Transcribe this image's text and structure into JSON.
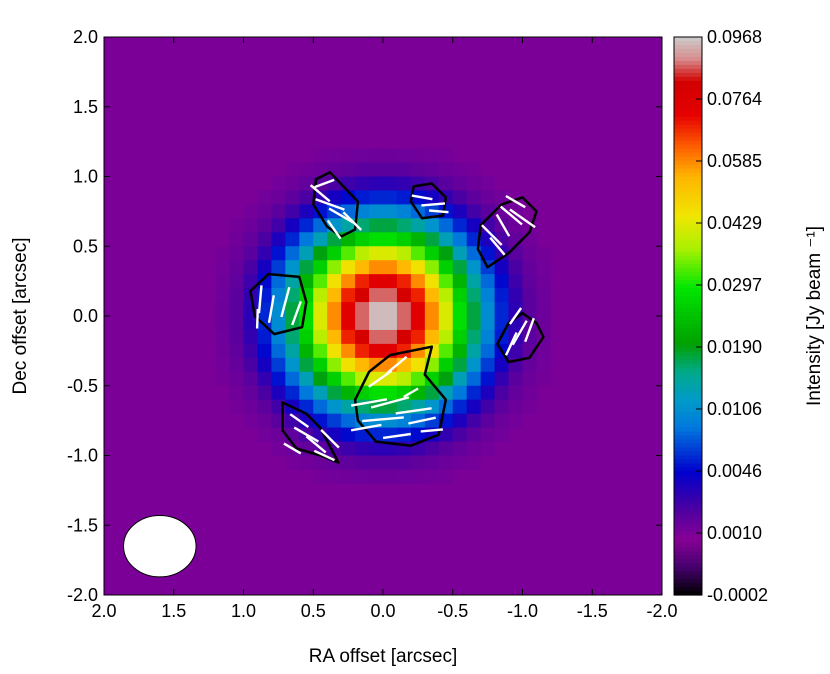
{
  "chart_data": {
    "type": "heatmap",
    "title": "",
    "xlabel": "RA offset [arcsec]",
    "ylabel": "Dec offset [arcsec]",
    "xlim": [
      2.0,
      -2.0
    ],
    "ylim": [
      -2.0,
      2.0
    ],
    "x_ticks": [
      2.0,
      1.5,
      1.0,
      0.5,
      0.0,
      -0.5,
      -1.0,
      -1.5,
      -2.0
    ],
    "y_ticks": [
      2.0,
      1.5,
      1.0,
      0.5,
      0.0,
      -0.5,
      -1.0,
      -1.5,
      -2.0
    ],
    "x_tick_labels": [
      "2.0",
      "1.5",
      "1.0",
      "0.5",
      "0.0",
      "-0.5",
      "-1.0",
      "-1.5",
      "-2.0"
    ],
    "y_tick_labels": [
      "2.0",
      "1.5",
      "1.0",
      "0.5",
      "0.0",
      "-0.5",
      "-1.0",
      "-1.5",
      "-2.0"
    ],
    "colorbar": {
      "label": "Intensity [Jy beam ⁻¹]",
      "tick_labels": [
        "0.0968",
        "0.0764",
        "0.0585",
        "0.0429",
        "0.0297",
        "0.0190",
        "0.0106",
        "0.0046",
        "0.0010",
        "-0.0002"
      ],
      "values": [
        0.0968,
        0.0764,
        0.0585,
        0.0429,
        0.0297,
        0.019,
        0.0106,
        0.0046,
        0.001,
        -0.0002
      ],
      "colormap": "nipy_spectral"
    },
    "source": {
      "center_ra": 0.0,
      "center_dec": 0.0,
      "peak_intensity": 0.0968,
      "background_intensity": 0.001,
      "fwhm_arcsec": 0.82,
      "emission_radius_arcsec": 1.25,
      "pixel_size_arcsec": 0.1
    },
    "beam": {
      "ra": 1.6,
      "dec": -1.65,
      "major_arcsec": 0.52,
      "minor_arcsec": 0.44,
      "pa_deg": 90
    },
    "polarization_contours": [
      {
        "region": "north-east",
        "points": [
          [
            0.48,
            0.98
          ],
          [
            0.38,
            1.03
          ],
          [
            0.18,
            0.82
          ],
          [
            0.2,
            0.62
          ],
          [
            0.3,
            0.57
          ],
          [
            0.4,
            0.64
          ],
          [
            0.5,
            0.8
          ]
        ]
      },
      {
        "region": "north",
        "points": [
          [
            -0.22,
            0.93
          ],
          [
            -0.35,
            0.95
          ],
          [
            -0.45,
            0.85
          ],
          [
            -0.43,
            0.72
          ],
          [
            -0.28,
            0.7
          ],
          [
            -0.2,
            0.82
          ]
        ]
      },
      {
        "region": "north-west",
        "points": [
          [
            -0.7,
            0.65
          ],
          [
            -0.85,
            0.8
          ],
          [
            -1.0,
            0.85
          ],
          [
            -1.1,
            0.75
          ],
          [
            -1.05,
            0.6
          ],
          [
            -0.9,
            0.45
          ],
          [
            -0.75,
            0.35
          ],
          [
            -0.68,
            0.48
          ]
        ]
      },
      {
        "region": "east",
        "points": [
          [
            0.95,
            0.18
          ],
          [
            0.82,
            0.3
          ],
          [
            0.6,
            0.28
          ],
          [
            0.55,
            0.1
          ],
          [
            0.58,
            -0.08
          ],
          [
            0.78,
            -0.13
          ],
          [
            0.92,
            0.0
          ]
        ]
      },
      {
        "region": "west",
        "points": [
          [
            -0.82,
            -0.2
          ],
          [
            -0.9,
            -0.05
          ],
          [
            -1.0,
            0.02
          ],
          [
            -1.1,
            -0.05
          ],
          [
            -1.15,
            -0.15
          ],
          [
            -1.05,
            -0.3
          ],
          [
            -0.9,
            -0.33
          ]
        ]
      },
      {
        "region": "south",
        "points": [
          [
            0.1,
            -0.4
          ],
          [
            -0.05,
            -0.28
          ],
          [
            -0.35,
            -0.22
          ],
          [
            -0.3,
            -0.42
          ],
          [
            -0.45,
            -0.6
          ],
          [
            -0.4,
            -0.85
          ],
          [
            -0.2,
            -0.93
          ],
          [
            0.05,
            -0.9
          ],
          [
            0.18,
            -0.75
          ],
          [
            0.2,
            -0.6
          ]
        ]
      },
      {
        "region": "south-east",
        "points": [
          [
            0.72,
            -0.62
          ],
          [
            0.55,
            -0.7
          ],
          [
            0.45,
            -0.8
          ],
          [
            0.32,
            -1.05
          ],
          [
            0.45,
            -1.0
          ],
          [
            0.62,
            -0.95
          ],
          [
            0.72,
            -0.82
          ]
        ]
      }
    ],
    "polarization_vectors": [
      {
        "ra": 0.45,
        "dec": 0.88,
        "length": 0.18,
        "angle": -40
      },
      {
        "ra": 0.38,
        "dec": 0.8,
        "length": 0.22,
        "angle": -20
      },
      {
        "ra": 0.3,
        "dec": 0.72,
        "length": 0.2,
        "angle": -30
      },
      {
        "ra": 0.22,
        "dec": 0.68,
        "length": 0.18,
        "angle": -45
      },
      {
        "ra": 0.35,
        "dec": 0.62,
        "length": 0.16,
        "angle": -55
      },
      {
        "ra": 0.42,
        "dec": 0.95,
        "length": 0.15,
        "angle": 20
      },
      {
        "ra": -0.28,
        "dec": 0.85,
        "length": 0.15,
        "angle": -10
      },
      {
        "ra": -0.36,
        "dec": 0.8,
        "length": 0.17,
        "angle": 5
      },
      {
        "ra": -0.4,
        "dec": 0.75,
        "length": 0.14,
        "angle": -5
      },
      {
        "ra": -0.78,
        "dec": 0.58,
        "length": 0.2,
        "angle": -45
      },
      {
        "ra": -0.86,
        "dec": 0.65,
        "length": 0.18,
        "angle": -60
      },
      {
        "ra": -0.92,
        "dec": 0.72,
        "length": 0.2,
        "angle": -40
      },
      {
        "ra": -1.0,
        "dec": 0.7,
        "length": 0.22,
        "angle": -35
      },
      {
        "ra": -0.82,
        "dec": 0.5,
        "length": 0.16,
        "angle": -50
      },
      {
        "ra": -0.95,
        "dec": 0.82,
        "length": 0.16,
        "angle": -30
      },
      {
        "ra": 0.88,
        "dec": 0.12,
        "length": 0.2,
        "angle": 85
      },
      {
        "ra": 0.8,
        "dec": 0.05,
        "length": 0.2,
        "angle": 80
      },
      {
        "ra": 0.7,
        "dec": 0.1,
        "length": 0.22,
        "angle": 75
      },
      {
        "ra": 0.62,
        "dec": 0.02,
        "length": 0.18,
        "angle": 70
      },
      {
        "ra": 0.9,
        "dec": -0.02,
        "length": 0.14,
        "angle": 88
      },
      {
        "ra": -0.92,
        "dec": -0.2,
        "length": 0.18,
        "angle": 65
      },
      {
        "ra": -0.98,
        "dec": -0.12,
        "length": 0.2,
        "angle": 60
      },
      {
        "ra": -1.05,
        "dec": -0.1,
        "length": 0.18,
        "angle": 70
      },
      {
        "ra": -0.95,
        "dec": 0.0,
        "length": 0.14,
        "angle": 55
      },
      {
        "ra": -0.2,
        "dec": -0.55,
        "length": 0.12,
        "angle": 30
      },
      {
        "ra": 0.02,
        "dec": -0.45,
        "length": 0.2,
        "angle": 35
      },
      {
        "ra": -0.1,
        "dec": -0.35,
        "length": 0.18,
        "angle": 40
      },
      {
        "ra": 0.1,
        "dec": -0.62,
        "length": 0.26,
        "angle": 10
      },
      {
        "ra": -0.05,
        "dec": -0.62,
        "length": 0.28,
        "angle": 15
      },
      {
        "ra": -0.22,
        "dec": -0.68,
        "length": 0.26,
        "angle": 8
      },
      {
        "ra": 0.0,
        "dec": -0.74,
        "length": 0.3,
        "angle": 5
      },
      {
        "ra": -0.28,
        "dec": -0.75,
        "length": 0.2,
        "angle": 12
      },
      {
        "ra": 0.12,
        "dec": -0.8,
        "length": 0.22,
        "angle": 10
      },
      {
        "ra": -0.1,
        "dec": -0.86,
        "length": 0.2,
        "angle": 8
      },
      {
        "ra": -0.35,
        "dec": -0.82,
        "length": 0.16,
        "angle": 5
      },
      {
        "ra": 0.6,
        "dec": -0.75,
        "length": 0.16,
        "angle": -35
      },
      {
        "ra": 0.55,
        "dec": -0.85,
        "length": 0.2,
        "angle": -30
      },
      {
        "ra": 0.48,
        "dec": -0.92,
        "length": 0.18,
        "angle": -40
      },
      {
        "ra": 0.42,
        "dec": -1.0,
        "length": 0.16,
        "angle": -25
      },
      {
        "ra": 0.65,
        "dec": -0.95,
        "length": 0.14,
        "angle": -30
      },
      {
        "ra": 0.38,
        "dec": -0.88,
        "length": 0.18,
        "angle": -45
      }
    ]
  }
}
